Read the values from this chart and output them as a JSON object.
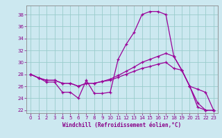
{
  "xlabel": "Windchill (Refroidissement éolien,°C)",
  "bg_color": "#cce8f0",
  "line_color": "#990099",
  "grid_color": "#99cccc",
  "x_ticks": [
    0,
    1,
    2,
    3,
    4,
    5,
    6,
    7,
    8,
    9,
    10,
    11,
    12,
    13,
    14,
    15,
    16,
    17,
    18,
    19,
    20,
    21,
    22,
    23
  ],
  "y_ticks": [
    22,
    24,
    26,
    28,
    30,
    32,
    34,
    36,
    38
  ],
  "xlim": [
    -0.5,
    23.5
  ],
  "ylim": [
    21.5,
    39.5
  ],
  "curve1_x": [
    0,
    1,
    2,
    3,
    4,
    5,
    6,
    7,
    8,
    9,
    10,
    11,
    12,
    13,
    14,
    15,
    16,
    17,
    18,
    19,
    20,
    21,
    22,
    23
  ],
  "curve1_y": [
    28.0,
    27.4,
    26.7,
    26.7,
    25.0,
    25.0,
    24.0,
    27.0,
    24.8,
    24.8,
    25.0,
    30.5,
    33.0,
    35.0,
    38.0,
    38.5,
    38.5,
    38.0,
    31.0,
    28.7,
    26.0,
    23.2,
    22.0,
    22.0
  ],
  "curve2_x": [
    0,
    1,
    2,
    3,
    4,
    5,
    6,
    7,
    8,
    9,
    10,
    11,
    12,
    13,
    14,
    15,
    16,
    17,
    18,
    19,
    20,
    21,
    22,
    23
  ],
  "curve2_y": [
    28.0,
    27.4,
    27.0,
    27.0,
    26.5,
    26.5,
    26.0,
    26.5,
    26.5,
    26.8,
    27.2,
    27.8,
    28.5,
    29.2,
    30.0,
    30.5,
    31.0,
    31.5,
    31.0,
    28.7,
    26.0,
    25.5,
    25.0,
    22.0
  ],
  "curve3_x": [
    0,
    1,
    2,
    3,
    4,
    5,
    6,
    7,
    8,
    9,
    10,
    11,
    12,
    13,
    14,
    15,
    16,
    17,
    18,
    19,
    20,
    21,
    22,
    23
  ],
  "curve3_y": [
    28.0,
    27.4,
    27.0,
    27.0,
    26.5,
    26.5,
    26.0,
    26.5,
    26.5,
    26.8,
    27.0,
    27.5,
    28.0,
    28.5,
    29.0,
    29.3,
    29.7,
    30.0,
    29.0,
    28.7,
    26.0,
    22.5,
    22.0,
    22.0
  ],
  "xlabel_fontsize": 5.5,
  "tick_fontsize": 5.0,
  "tick_color": "#880088",
  "spine_color": "#888888"
}
